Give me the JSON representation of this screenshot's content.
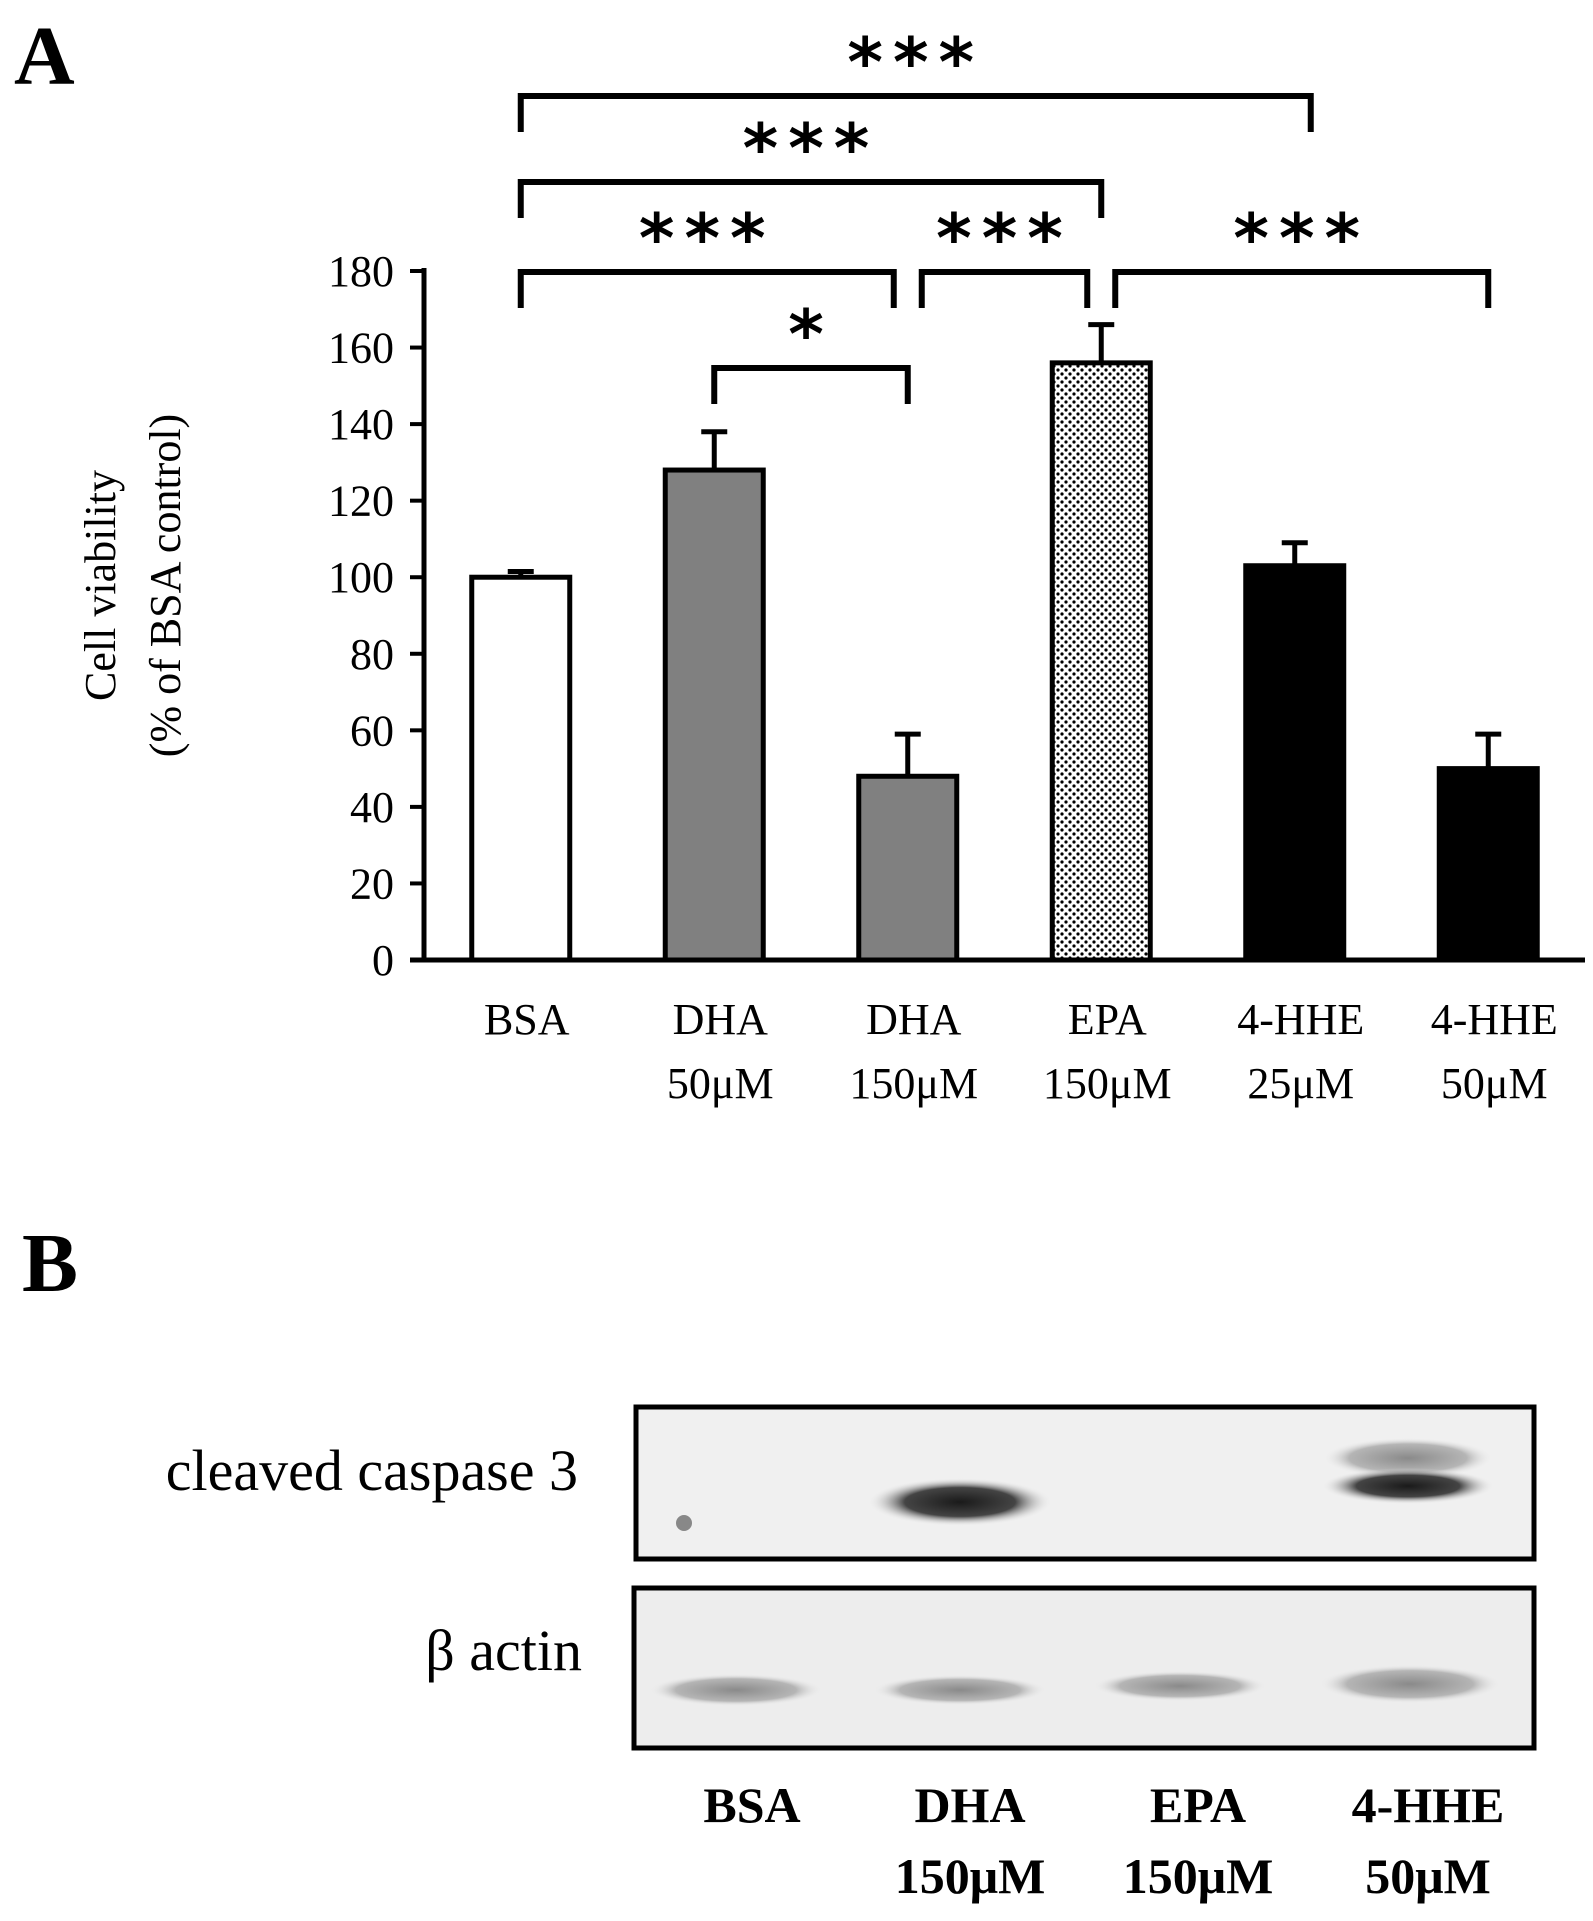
{
  "panel_a_label": "A",
  "panel_b_label": "B",
  "chart_data": {
    "type": "bar",
    "ylabel_line1": "Cell viability",
    "ylabel_line2": "(% of BSA control)",
    "ylim": [
      0,
      180
    ],
    "yticks": [
      "0",
      "20",
      "40",
      "60",
      "80",
      "100",
      "120",
      "140",
      "160",
      "180"
    ],
    "categories": [
      {
        "line1": "BSA",
        "line2": ""
      },
      {
        "line1": "DHA",
        "line2": "50μM"
      },
      {
        "line1": "DHA",
        "line2": "150μM"
      },
      {
        "line1": "EPA",
        "line2": "150μM"
      },
      {
        "line1": "4-HHE",
        "line2": "25μM"
      },
      {
        "line1": "4-HHE",
        "line2": "50μM"
      }
    ],
    "values": [
      100,
      128,
      48,
      156,
      103,
      50
    ],
    "errors": [
      1.5,
      10,
      11,
      10,
      6,
      9
    ],
    "bar_styles": [
      "white",
      "gray",
      "gray",
      "dotted",
      "black",
      "black"
    ],
    "significance": [
      {
        "from": 0,
        "to": 4,
        "label": "***",
        "level": 4
      },
      {
        "from": 0,
        "to": 3,
        "label": "***",
        "level": 3
      },
      {
        "from": 0,
        "to": 2,
        "label": "***",
        "level": 2
      },
      {
        "from": 2,
        "to": 3,
        "label": "***",
        "level": 2
      },
      {
        "from": 3,
        "to": 5,
        "label": "***",
        "level": 2
      },
      {
        "from": 1,
        "to": 2,
        "label": "*",
        "level": 1
      }
    ]
  },
  "western_blot": {
    "rows": [
      "cleaved caspase 3",
      "β actin"
    ],
    "lanes": [
      {
        "line1": "BSA",
        "line2": ""
      },
      {
        "line1": "DHA",
        "line2": "150μM"
      },
      {
        "line1": "EPA",
        "line2": "150μM"
      },
      {
        "line1": "4-HHE",
        "line2": "50μM"
      }
    ]
  }
}
